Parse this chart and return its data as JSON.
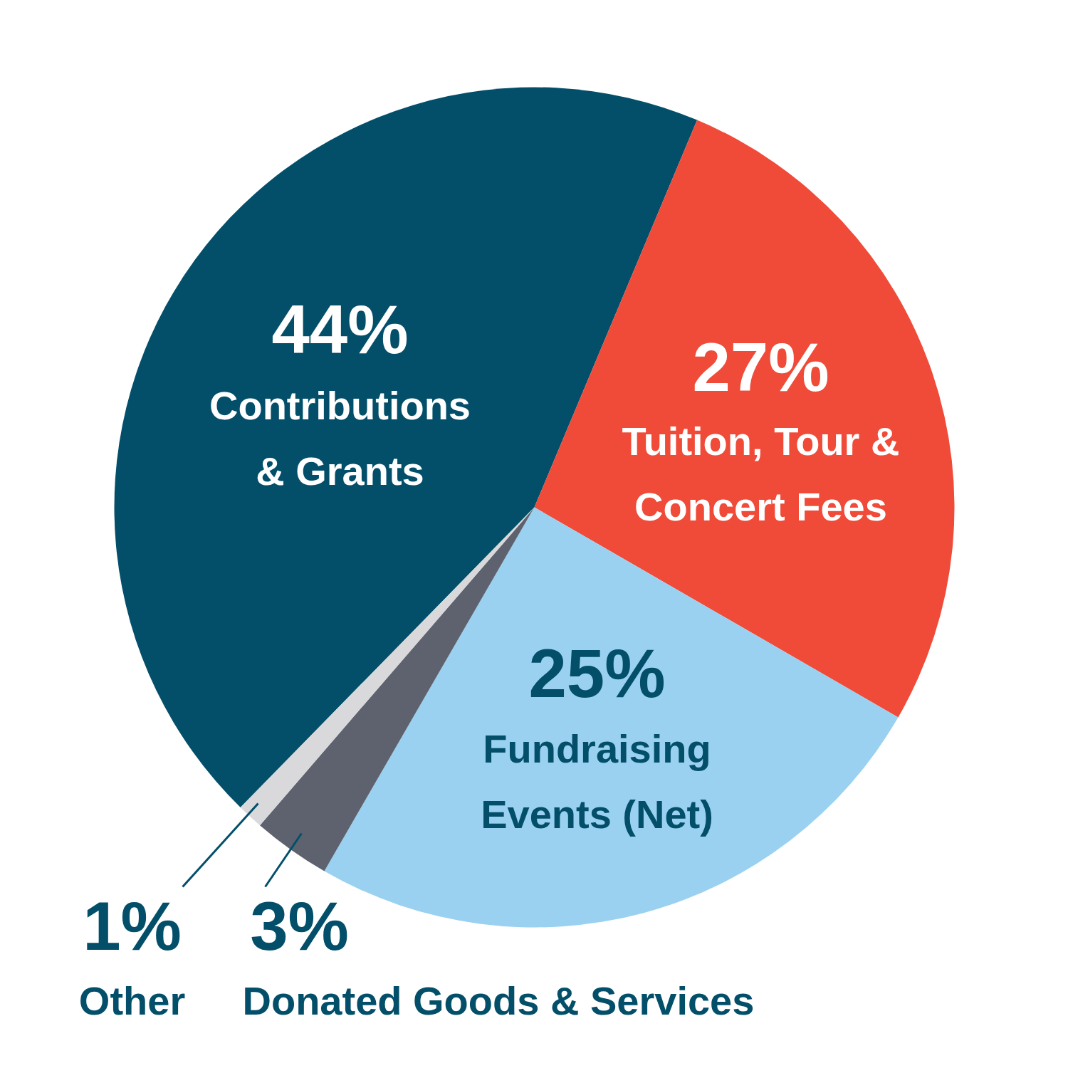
{
  "chart_data": {
    "type": "pie",
    "categories": [
      "Contributions\n& Grants",
      "Tuition, Tour &\nConcert Fees",
      "Fundraising\nEvents (Net)",
      "Donated Goods & Services",
      "Other"
    ],
    "values": [
      44,
      27,
      25,
      3,
      1
    ],
    "colors": [
      "#034f6a",
      "#f04a38",
      "#9ad1f0",
      "#5d626e",
      "#d9d9db"
    ],
    "value_labels": [
      "44%",
      "27%",
      "25%",
      "3%",
      "1%"
    ]
  }
}
